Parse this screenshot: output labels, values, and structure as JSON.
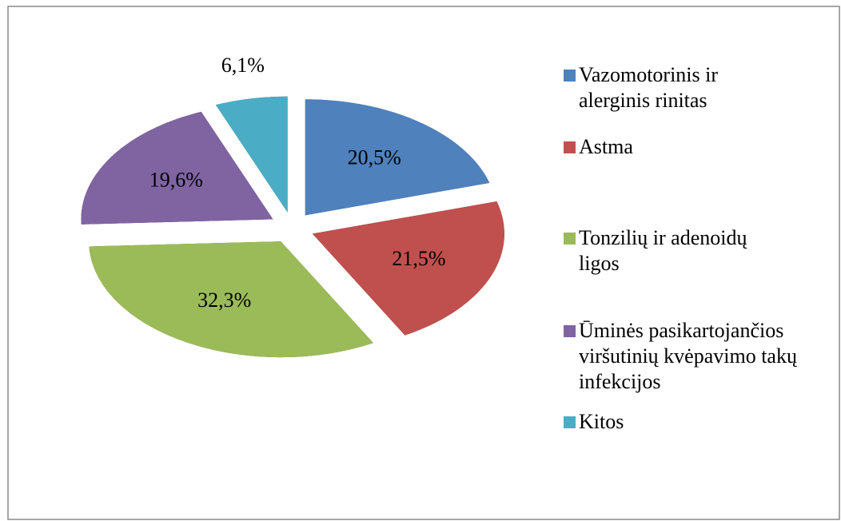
{
  "chart_data": {
    "type": "pie3d",
    "categories": [
      "Vazomotorinis ir alerginis rinitas",
      "Astma",
      "Tonzilių ir adenoidų ligos",
      "Ūminės pasikartojančios viršutinių kvėpavimo takų infekcijos",
      "Kitos"
    ],
    "values": [
      20.5,
      21.5,
      32.3,
      19.6,
      6.1
    ],
    "value_labels": [
      "20,5%",
      "21,5%",
      "32,3%",
      "19,6%",
      "6,1%"
    ],
    "colors": [
      "#4f81bd",
      "#c0504d",
      "#9bbb59",
      "#8064a2",
      "#4bacc6"
    ],
    "legend": "right"
  }
}
